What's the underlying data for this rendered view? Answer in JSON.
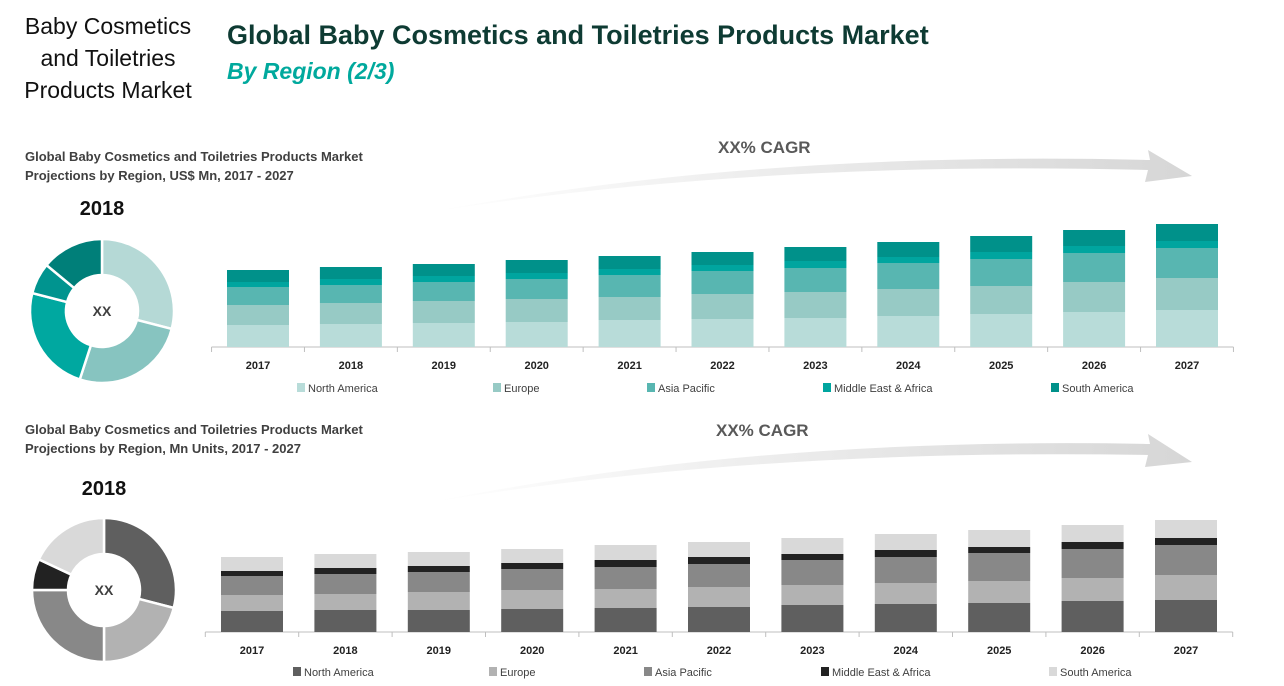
{
  "header": {
    "side_title": "Baby Cosmetics and Toiletries Products Market",
    "title": "Global Baby Cosmetics and Toiletries Products Market",
    "subtitle": "By Region (2/3)"
  },
  "colors": {
    "title": "#0e3b33",
    "subtitle": "#00a99d",
    "teal_series": [
      "#b8dcd9",
      "#97cac5",
      "#58b6b1",
      "#00a59f",
      "#00918a"
    ],
    "teal_donut": [
      "#b5d9d6",
      "#87c4c0",
      "#00a8a0",
      "#00948f",
      "#007f79"
    ],
    "gray_series": [
      "#5f5f5f",
      "#b2b2b2",
      "#888888",
      "#222222",
      "#d9d9d9"
    ]
  },
  "chart_data": [
    {
      "type": "bar",
      "stacked": true,
      "title": "Global Baby Cosmetics and Toiletries Products Market Projections by Region, US$ Mn, 2017 - 2027",
      "annotation": "XX% CAGR",
      "categories": [
        "2017",
        "2018",
        "2019",
        "2020",
        "2021",
        "2022",
        "2023",
        "2024",
        "2025",
        "2026",
        "2027"
      ],
      "legend_position": "bottom",
      "grid": false,
      "series": [
        {
          "name": "North America",
          "values": [
            22,
            23,
            24,
            25,
            27,
            28,
            29,
            31,
            33,
            35,
            37
          ]
        },
        {
          "name": "Europe",
          "values": [
            20,
            21,
            22,
            23,
            23,
            25,
            26,
            27,
            28,
            30,
            32
          ]
        },
        {
          "name": "Asia Pacific",
          "values": [
            18,
            18,
            19,
            20,
            22,
            23,
            24,
            26,
            27,
            29,
            30
          ]
        },
        {
          "name": "Middle East & Africa",
          "values": [
            5,
            6,
            6,
            6,
            6,
            6,
            7,
            6,
            7,
            7,
            7
          ]
        },
        {
          "name": "South America",
          "values": [
            12,
            12,
            12,
            13,
            13,
            13,
            14,
            15,
            16,
            16,
            17
          ]
        }
      ]
    },
    {
      "type": "pie",
      "donut": true,
      "title": "2018",
      "center_label": "XX",
      "labels": [
        "North America",
        "Europe",
        "Asia Pacific",
        "Middle East & Africa",
        "South America"
      ],
      "values": [
        29,
        26,
        24,
        7,
        14
      ]
    },
    {
      "type": "bar",
      "stacked": true,
      "title": "Global Baby Cosmetics and Toiletries Products Market Projections by Region, Mn Units, 2017 - 2027",
      "annotation": "XX% CAGR",
      "categories": [
        "2017",
        "2018",
        "2019",
        "2020",
        "2021",
        "2022",
        "2023",
        "2024",
        "2025",
        "2026",
        "2027"
      ],
      "legend_position": "bottom",
      "grid": false,
      "series": [
        {
          "name": "North America",
          "values": [
            21,
            22,
            22,
            23,
            24,
            25,
            27,
            28,
            29,
            31,
            32
          ]
        },
        {
          "name": "Europe",
          "values": [
            16,
            16,
            18,
            19,
            19,
            20,
            20,
            21,
            22,
            23,
            25
          ]
        },
        {
          "name": "Asia Pacific",
          "values": [
            19,
            20,
            20,
            21,
            22,
            23,
            25,
            26,
            28,
            29,
            30
          ]
        },
        {
          "name": "Middle East & Africa",
          "values": [
            5,
            6,
            6,
            6,
            7,
            7,
            6,
            7,
            6,
            7,
            7
          ]
        },
        {
          "name": "South America",
          "values": [
            14,
            14,
            14,
            14,
            15,
            15,
            16,
            16,
            17,
            17,
            18
          ]
        }
      ]
    },
    {
      "type": "pie",
      "donut": true,
      "title": "2018",
      "center_label": "XX",
      "labels": [
        "North America",
        "Europe",
        "Asia Pacific",
        "Middle East & Africa",
        "South America"
      ],
      "values": [
        29,
        21,
        25,
        7,
        18
      ]
    }
  ]
}
